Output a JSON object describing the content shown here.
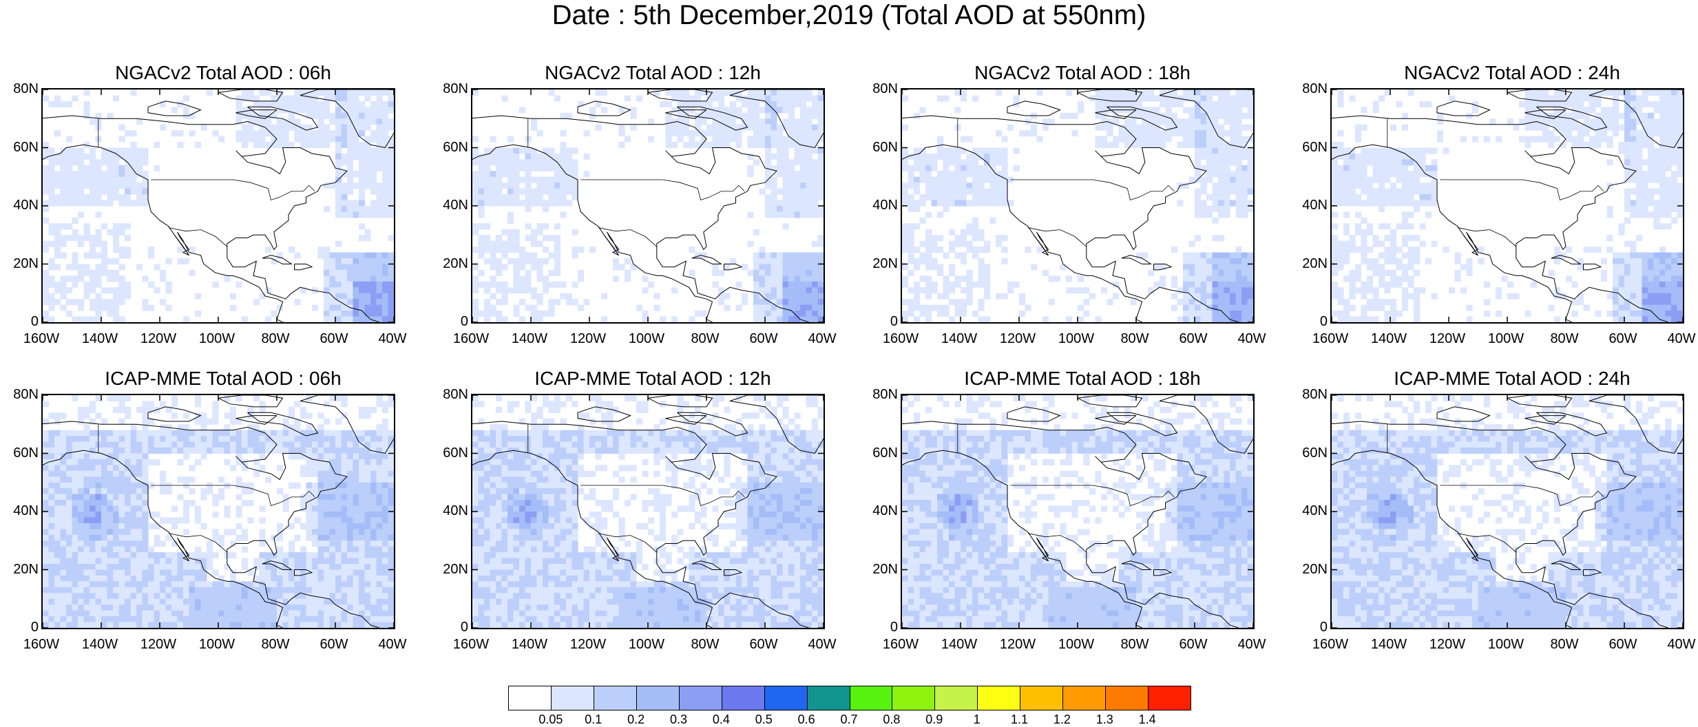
{
  "title": "Date : 5th December,2019 (Total AOD at 550nm)",
  "panels": [
    {
      "title": "NGACv2 Total AOD : 06h",
      "model": "ngac",
      "hour": 6
    },
    {
      "title": "NGACv2 Total AOD : 12h",
      "model": "ngac",
      "hour": 12
    },
    {
      "title": "NGACv2 Total AOD : 18h",
      "model": "ngac",
      "hour": 18
    },
    {
      "title": "NGACv2 Total AOD : 24h",
      "model": "ngac",
      "hour": 24
    },
    {
      "title": "ICAP-MME Total AOD : 06h",
      "model": "icap",
      "hour": 6
    },
    {
      "title": "ICAP-MME Total AOD : 12h",
      "model": "icap",
      "hour": 12
    },
    {
      "title": "ICAP-MME Total AOD : 18h",
      "model": "icap",
      "hour": 18
    },
    {
      "title": "ICAP-MME Total AOD : 24h",
      "model": "icap",
      "hour": 24
    }
  ],
  "lat_labels": [
    "80N",
    "60N",
    "40N",
    "20N",
    "0"
  ],
  "lon_labels": [
    "160W",
    "140W",
    "120W",
    "100W",
    "80W",
    "60W",
    "40W"
  ],
  "colorbar": {
    "labels": [
      "0.05",
      "0.1",
      "0.2",
      "0.3",
      "0.4",
      "0.5",
      "0.6",
      "0.7",
      "0.8",
      "0.9",
      "1",
      "1.1",
      "1.2",
      "1.3",
      "1.4"
    ],
    "colors": [
      "#ffffff",
      "#dce6ff",
      "#bccffb",
      "#a4bdf8",
      "#8c9ef4",
      "#6c78ee",
      "#1f66f0",
      "#12948f",
      "#58f20f",
      "#8ef20f",
      "#c7f24a",
      "#ffff14",
      "#ffbf00",
      "#ff9a00",
      "#ff7a00",
      "#ff2000"
    ]
  }
}
